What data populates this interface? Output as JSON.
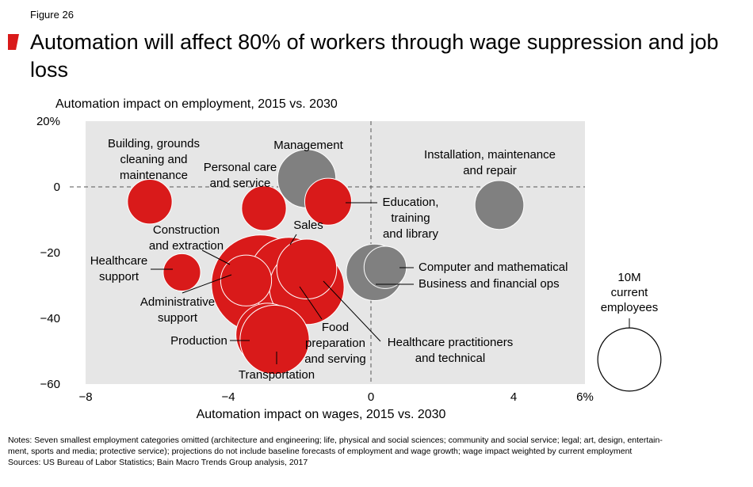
{
  "figure_label": "Figure 26",
  "title": "Automation will affect 80% of workers through wage suppression and job loss",
  "colors": {
    "accent": "#d91a1a",
    "gray_bubble": "#808080",
    "plot_bg": "#e6e6e6"
  },
  "chart_data": {
    "type": "scatter",
    "subtitle": "Automation impact on employment, 2015 vs. 2030",
    "xlabel": "Automation impact on wages, 2015 vs. 2030",
    "ylabel": "Automation impact on employment, 2015 vs. 2030",
    "xlim": [
      -8,
      6
    ],
    "ylim": [
      -60,
      20
    ],
    "x_ticks": [
      {
        "value": -8,
        "label": "−8"
      },
      {
        "value": -4,
        "label": "−4"
      },
      {
        "value": 0,
        "label": "0"
      },
      {
        "value": 4,
        "label": "4"
      },
      {
        "value": 6,
        "label": "6%"
      }
    ],
    "y_ticks": [
      {
        "value": 20,
        "label": "20%"
      },
      {
        "value": 0,
        "label": "0"
      },
      {
        "value": -20,
        "label": "−20"
      },
      {
        "value": -40,
        "label": "−40"
      },
      {
        "value": -60,
        "label": "−60"
      }
    ],
    "grid": false,
    "size_legend": {
      "value": 10,
      "unit": "M",
      "label": "10M current employees"
    },
    "points": [
      {
        "name": "Building, grounds cleaning and maintenance",
        "label_lines": [
          "Building, grounds",
          "cleaning and",
          "maintenance"
        ],
        "x": -6.2,
        "y": -4.5,
        "employees_m": 5.0,
        "color": "red"
      },
      {
        "name": "Personal care and service",
        "label_lines": [
          "Personal care",
          "and service"
        ],
        "x": -3.0,
        "y": -6.5,
        "employees_m": 5.0,
        "color": "red"
      },
      {
        "name": "Management",
        "label_lines": [
          "Management"
        ],
        "x": -1.8,
        "y": 2.5,
        "employees_m": 8.5,
        "color": "gray"
      },
      {
        "name": "Education, training and library",
        "label_lines": [
          "Education,",
          "training",
          "and library"
        ],
        "x": -1.2,
        "y": -4.5,
        "employees_m": 5.5,
        "color": "red"
      },
      {
        "name": "Installation, maintenance and repair",
        "label_lines": [
          "Installation, maintenance",
          "and repair"
        ],
        "x": 3.6,
        "y": -5.5,
        "employees_m": 6.0,
        "color": "gray"
      },
      {
        "name": "Construction and extraction",
        "label_lines": [
          "Construction",
          "and extraction"
        ],
        "x": -3.1,
        "y": -29.5,
        "employees_m": 24.0,
        "color": "red"
      },
      {
        "name": "Sales",
        "label_lines": [
          "Sales"
        ],
        "x": -2.3,
        "y": -27.5,
        "employees_m": 16.0,
        "color": "red"
      },
      {
        "name": "Healthcare practitioners and technical",
        "label_lines": [
          "Healthcare practitioners",
          "and technical"
        ],
        "x": -1.8,
        "y": -30.5,
        "employees_m": 14.0,
        "color": "red"
      },
      {
        "name": "Food preparation and serving",
        "label_lines": [
          "Food",
          "preparation",
          "and serving"
        ],
        "x": -1.8,
        "y": -25.0,
        "employees_m": 9.0,
        "color": "red"
      },
      {
        "name": "Healthcare support",
        "label_lines": [
          "Healthcare",
          "support"
        ],
        "x": -5.3,
        "y": -26.0,
        "employees_m": 3.5,
        "color": "red"
      },
      {
        "name": "Administrative support",
        "label_lines": [
          "Administrative",
          "support"
        ],
        "x": -3.5,
        "y": -28.5,
        "employees_m": 6.5,
        "color": "red"
      },
      {
        "name": "Production",
        "label_lines": [
          "Production"
        ],
        "x": -2.9,
        "y": -45.0,
        "employees_m": 10.0,
        "color": "red"
      },
      {
        "name": "Transportation",
        "label_lines": [
          "Transportation"
        ],
        "x": -2.7,
        "y": -46.5,
        "employees_m": 12.0,
        "color": "red"
      },
      {
        "name": "Business and financial ops",
        "label_lines": [
          "Business and financial ops"
        ],
        "x": 0.1,
        "y": -26.0,
        "employees_m": 8.0,
        "color": "gray"
      },
      {
        "name": "Computer and mathematical",
        "label_lines": [
          "Computer and mathematical"
        ],
        "x": 0.4,
        "y": -24.5,
        "employees_m": 4.5,
        "color": "gray"
      }
    ]
  },
  "notes": [
    "Notes: Seven smallest employment categories omitted (architecture and engineering; life, physical and social sciences; community and social service; legal; art, design, entertain-",
    "ment, sports and media; protective service); projections do not include baseline forecasts of employment and wage growth; wage impact weighted by current employment",
    "Sources: US Bureau of Labor Statistics; Bain Macro Trends Group analysis, 2017"
  ]
}
